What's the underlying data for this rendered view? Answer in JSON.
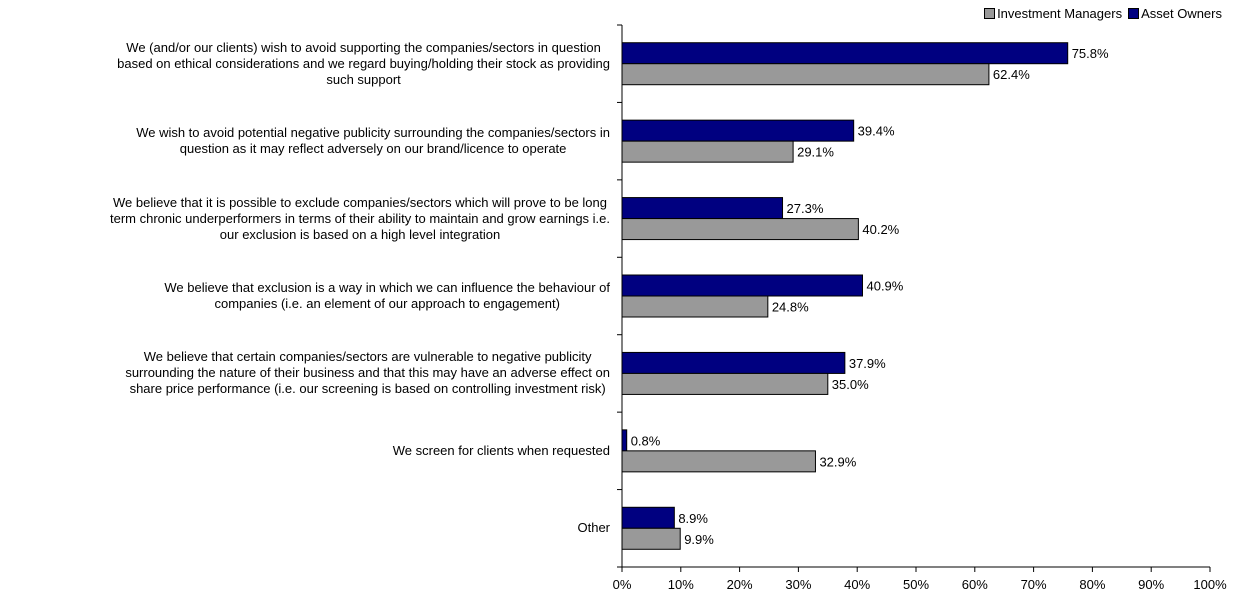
{
  "chart_data": {
    "type": "bar",
    "orientation": "horizontal",
    "categories": [
      [
        "We (and/or our clients) wish to avoid supporting the companies/sectors in question",
        "based on ethical considerations and we regard buying/holding their stock as providing",
        "such support"
      ],
      [
        "We wish to avoid potential negative publicity surrounding the companies/sectors in",
        "question as it may reflect adversely on our brand/licence to operate"
      ],
      [
        "We believe that it is possible to exclude companies/sectors which will prove to be long",
        "term chronic underperformers in terms of their ability to maintain and grow earnings i.e.",
        "our exclusion is based on a high level integration"
      ],
      [
        "We believe that exclusion is a way in which we can influence the behaviour of",
        "companies (i.e. an element of our approach to engagement)"
      ],
      [
        "We believe that certain companies/sectors are vulnerable to negative publicity",
        "surrounding the nature of their business and that this may have an adverse effect on",
        "share price performance (i.e. our screening is based on controlling investment risk)"
      ],
      [
        "We screen for clients when requested"
      ],
      [
        "Other"
      ]
    ],
    "series": [
      {
        "name": "Asset Owners",
        "color": "#000080",
        "values": [
          75.8,
          39.4,
          27.3,
          40.9,
          37.9,
          0.8,
          8.9
        ],
        "labels": [
          "75.8%",
          "39.4%",
          "27.3%",
          "40.9%",
          "37.9%",
          "0.8%",
          "8.9%"
        ]
      },
      {
        "name": "Investment Managers",
        "color": "#999999",
        "values": [
          62.4,
          29.1,
          40.2,
          24.8,
          35.0,
          32.9,
          9.9
        ],
        "labels": [
          "62.4%",
          "29.1%",
          "40.2%",
          "24.8%",
          "35.0%",
          "32.9%",
          "9.9%"
        ]
      }
    ],
    "xlim": [
      0,
      100
    ],
    "xticks": [
      "0%",
      "10%",
      "20%",
      "30%",
      "40%",
      "50%",
      "60%",
      "70%",
      "80%",
      "90%",
      "100%"
    ],
    "legend_position": "top-right",
    "legend_order": [
      "Investment Managers",
      "Asset Owners"
    ],
    "grid": false
  }
}
